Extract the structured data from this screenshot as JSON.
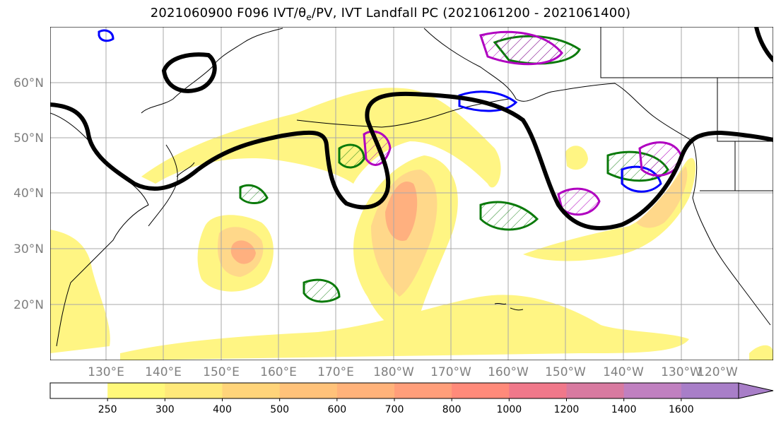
{
  "title": {
    "prefix": "2021060900 F096 IVT/",
    "theta": "θ",
    "theta_sub": "e",
    "suffix": "/PV, IVT Landfall PC (2021061200 - 2021061400)"
  },
  "map": {
    "lat_labels": [
      "60°N",
      "50°N",
      "40°N",
      "30°N",
      "20°N"
    ],
    "lon_labels": [
      "130°E",
      "140°E",
      "150°E",
      "160°E",
      "170°E",
      "180°W",
      "170°W",
      "160°W",
      "150°W",
      "140°W",
      "130°W",
      "120°W"
    ]
  },
  "colorbar": {
    "ticks": [
      "250",
      "300",
      "400",
      "500",
      "600",
      "700",
      "800",
      "1000",
      "1200",
      "1400",
      "1600"
    ],
    "colors": [
      "#ffffff",
      "#fff87a",
      "#ffe97a",
      "#ffd47a",
      "#ffc27a",
      "#ffb27a",
      "#ff9e7a",
      "#ff8a7a",
      "#f0788a",
      "#d87aa0",
      "#c080c0",
      "#a87ec8"
    ]
  },
  "legend_colors": {
    "ivt_fill": "#fff27a",
    "theta_e_contour": "#0a7a0a",
    "pv_contour": "#0000ff",
    "landfall_pc": "#b000c0",
    "jet": "#000000"
  }
}
